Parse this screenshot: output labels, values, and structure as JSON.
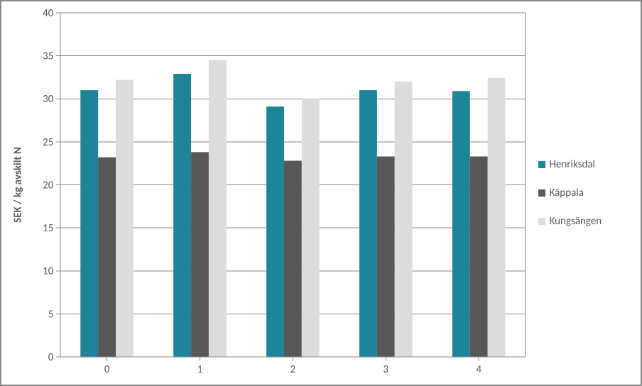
{
  "chart": {
    "type": "bar",
    "background_color": "#ffffff",
    "frame_border_color": "#888888",
    "plot_border_color": "#888888",
    "grid_color": "#888888",
    "tick_color": "#888888",
    "ylabel": "SEK / kg avskilt N",
    "ylabel_fontsize": 15,
    "ylabel_fontweight": "bold",
    "axis_label_fontsize": 15,
    "axis_label_color": "#595959",
    "ylim": [
      0,
      40
    ],
    "ytick_step": 5,
    "yticks": [
      0,
      5,
      10,
      15,
      20,
      25,
      30,
      35,
      40
    ],
    "categories": [
      "0",
      "1",
      "2",
      "3",
      "4"
    ],
    "bar_width_rel": 0.19,
    "group_gap_rel": 0.08,
    "series": [
      {
        "name": "Henriksdal",
        "color": "#1d8597",
        "values": [
          31.0,
          32.9,
          29.1,
          31.0,
          30.9
        ]
      },
      {
        "name": "Käppala",
        "color": "#575757",
        "values": [
          23.2,
          23.8,
          22.8,
          23.3,
          23.3
        ]
      },
      {
        "name": "Kungsängen",
        "color": "#dcdcdc",
        "values": [
          32.2,
          34.5,
          30.0,
          32.0,
          32.4
        ]
      }
    ],
    "legend_fontsize": 15
  }
}
